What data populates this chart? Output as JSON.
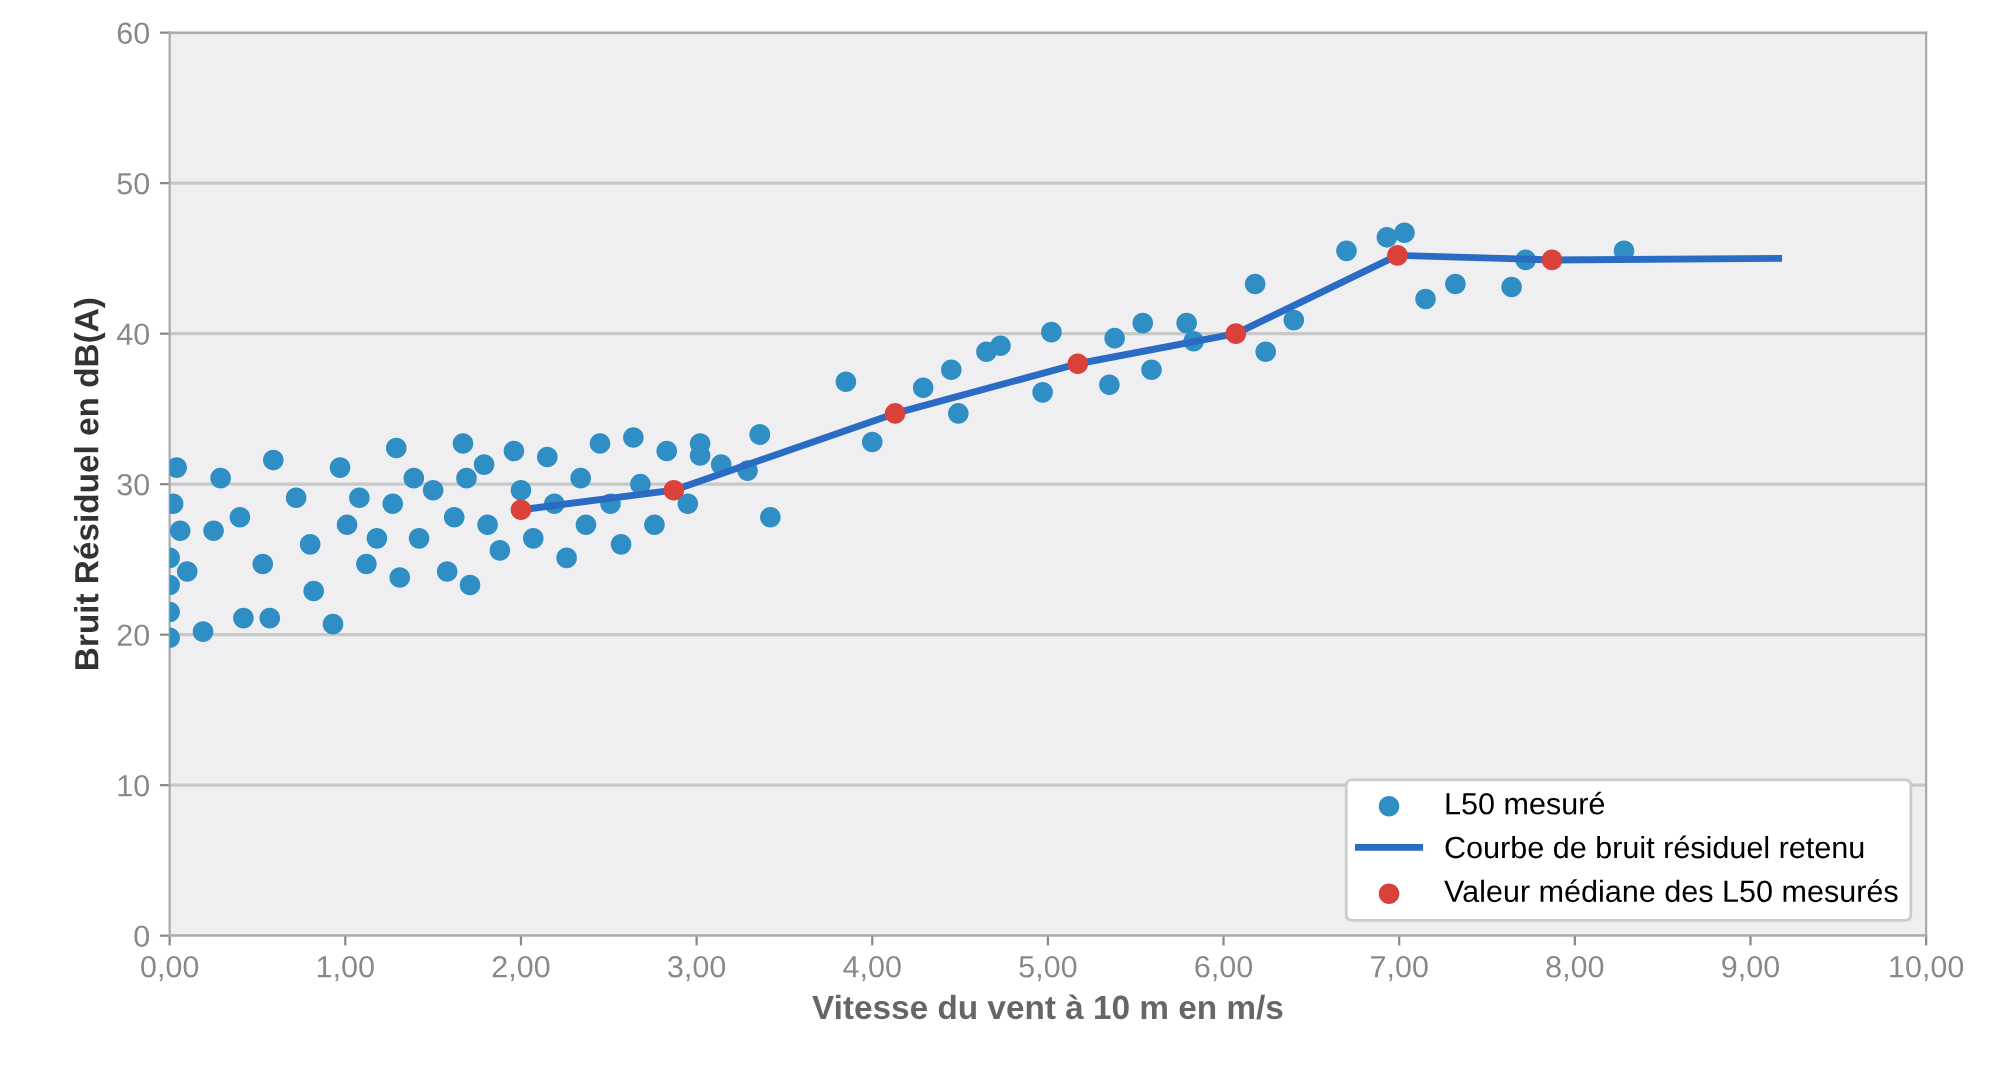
{
  "chart_data": {
    "type": "scatter",
    "xlabel": "Vitesse du vent à 10 m en m/s",
    "ylabel": "Bruit Résiduel en dB(A)",
    "xlim": [
      0,
      10
    ],
    "ylim": [
      0,
      60
    ],
    "xticks": [
      {
        "value": 0,
        "label": "0,00"
      },
      {
        "value": 1,
        "label": "1,00"
      },
      {
        "value": 2,
        "label": "2,00"
      },
      {
        "value": 3,
        "label": "3,00"
      },
      {
        "value": 4,
        "label": "4,00"
      },
      {
        "value": 5,
        "label": "5,00"
      },
      {
        "value": 6,
        "label": "6,00"
      },
      {
        "value": 7,
        "label": "7,00"
      },
      {
        "value": 8,
        "label": "8,00"
      },
      {
        "value": 9,
        "label": "9,00"
      },
      {
        "value": 10,
        "label": "10,00"
      }
    ],
    "yticks": [
      0,
      10,
      20,
      30,
      40,
      50,
      60
    ],
    "grid": "y",
    "legend": "bottom right",
    "marker": "circle",
    "series": [
      {
        "name": "L50 mesuré",
        "color": "#2f8fc4",
        "x": [
          0.04,
          0.02,
          0.0,
          0.0,
          0.0,
          0.0,
          0.06,
          0.1,
          0.19,
          0.29,
          0.25,
          0.4,
          0.42,
          0.59,
          0.53,
          0.57,
          0.72,
          0.8,
          0.82,
          0.97,
          0.93,
          1.01,
          1.08,
          1.12,
          1.18,
          1.29,
          1.27,
          1.31,
          1.39,
          1.42,
          1.5,
          1.58,
          1.62,
          1.67,
          1.69,
          1.71,
          1.79,
          1.81,
          1.88,
          1.96,
          2.0,
          2.07,
          2.15,
          2.19,
          2.26,
          2.34,
          2.37,
          2.45,
          2.51,
          2.57,
          2.64,
          2.68,
          2.76,
          2.83,
          2.95,
          3.02,
          3.14,
          3.36,
          3.42,
          3.29,
          3.85,
          3.36,
          3.02,
          4.0,
          4.29,
          4.45,
          4.49,
          4.65,
          4.73,
          5.02,
          4.97,
          5.35,
          5.38,
          5.54,
          5.59,
          5.79,
          5.83,
          6.18,
          6.24,
          6.4,
          6.7,
          6.93,
          7.03,
          7.15,
          7.32,
          7.64,
          7.72,
          8.28
        ],
        "values": [
          31.1,
          28.7,
          25.1,
          23.3,
          21.5,
          19.8,
          26.9,
          24.2,
          20.2,
          30.4,
          26.9,
          27.8,
          21.1,
          31.6,
          24.7,
          21.1,
          29.1,
          26.0,
          22.9,
          31.1,
          20.7,
          27.3,
          29.1,
          24.7,
          26.4,
          32.4,
          28.7,
          23.8,
          30.4,
          26.4,
          29.6,
          24.2,
          27.8,
          32.7,
          30.4,
          23.3,
          31.3,
          27.3,
          25.6,
          32.2,
          29.6,
          26.4,
          31.8,
          28.7,
          25.1,
          30.4,
          27.3,
          32.7,
          28.7,
          26.0,
          33.1,
          30.0,
          27.3,
          32.2,
          28.7,
          32.7,
          31.3,
          33.3,
          27.8,
          30.9,
          36.8,
          33.3,
          31.9,
          32.8,
          36.4,
          37.6,
          34.7,
          38.8,
          39.2,
          40.1,
          36.1,
          36.6,
          39.7,
          40.7,
          37.6,
          40.7,
          39.5,
          43.3,
          38.8,
          40.9,
          45.5,
          46.4,
          46.7,
          42.3,
          43.3,
          43.1,
          44.9,
          45.5
        ]
      },
      {
        "name": "Courbe de bruit résiduel retenu",
        "type": "line",
        "color": "#2a6cc4",
        "marker": "none",
        "line_style": "solid",
        "x": [
          2.0,
          2.87,
          4.13,
          5.17,
          6.07,
          6.99,
          7.87,
          9.16
        ],
        "values": [
          28.3,
          29.6,
          34.7,
          38.0,
          40.0,
          45.2,
          44.9,
          45.0
        ]
      },
      {
        "name": "Valeur médiane des L50 mesurés",
        "color": "#d9413a",
        "x": [
          2.0,
          2.87,
          4.13,
          5.17,
          6.07,
          6.99,
          7.87
        ],
        "values": [
          28.3,
          29.6,
          34.7,
          38.0,
          40.0,
          45.2,
          44.9
        ]
      }
    ]
  }
}
